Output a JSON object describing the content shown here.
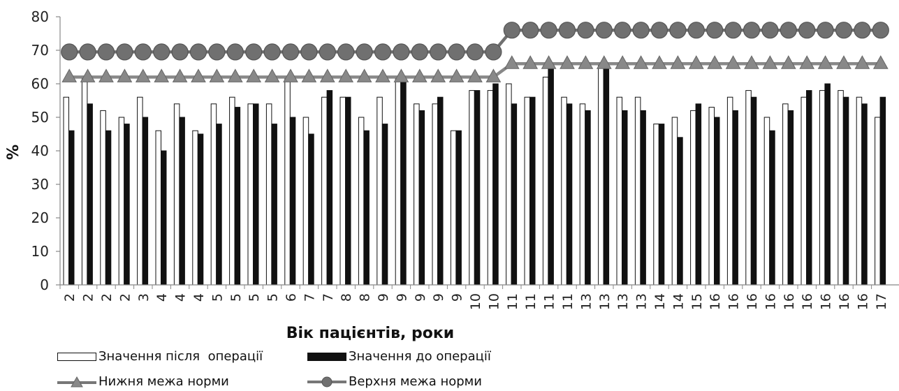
{
  "chart_data": {
    "type": "bar",
    "title": "",
    "xlabel": "Вік пацієнтів, роки",
    "ylabel": "%",
    "ylim": [
      0,
      80
    ],
    "yticks": [
      0,
      10,
      20,
      30,
      40,
      50,
      60,
      70,
      80
    ],
    "grid": false,
    "legend_position": "bottom",
    "categories": [
      "2",
      "2",
      "2",
      "2",
      "3",
      "4",
      "4",
      "4",
      "5",
      "5",
      "5",
      "5",
      "6",
      "7",
      "7",
      "8",
      "8",
      "9",
      "9",
      "9",
      "9",
      "9",
      "10",
      "10",
      "11",
      "11",
      "11",
      "11",
      "13",
      "13",
      "13",
      "13",
      "14",
      "14",
      "15",
      "16",
      "16",
      "16",
      "16",
      "16",
      "16",
      "16",
      "16",
      "16",
      "17"
    ],
    "series": [
      {
        "name": "Значення після  операції",
        "type": "bar",
        "color": "#ffffff",
        "values": [
          56,
          62,
          52,
          50,
          56,
          46,
          54,
          46,
          54,
          56,
          54,
          54,
          62,
          50,
          56,
          56,
          50,
          56,
          62,
          54,
          54,
          46,
          58,
          58,
          60,
          56,
          62,
          56,
          54,
          66,
          56,
          56,
          48,
          50,
          52,
          53,
          56,
          58,
          50,
          54,
          56,
          58,
          58,
          56,
          50
        ]
      },
      {
        "name": "Значення до операції",
        "type": "bar",
        "color": "#111111",
        "values": [
          46,
          54,
          46,
          48,
          50,
          40,
          50,
          45,
          48,
          53,
          54,
          48,
          50,
          45,
          58,
          56,
          46,
          48,
          62,
          52,
          56,
          46,
          58,
          60,
          54,
          56,
          66,
          54,
          52,
          66,
          52,
          52,
          48,
          44,
          54,
          50,
          52,
          56,
          46,
          52,
          58,
          60,
          56,
          54,
          56
        ]
      },
      {
        "name": "Нижня межа норми",
        "type": "line",
        "marker": "triangle",
        "color": "#888888",
        "values": [
          62,
          62,
          62,
          62,
          62,
          62,
          62,
          62,
          62,
          62,
          62,
          62,
          62,
          62,
          62,
          62,
          62,
          62,
          62,
          62,
          62,
          62,
          62,
          62,
          66,
          66,
          66,
          66,
          66,
          66,
          66,
          66,
          66,
          66,
          66,
          66,
          66,
          66,
          66,
          66,
          66,
          66,
          66,
          66,
          66
        ]
      },
      {
        "name": "Верхня межа норми",
        "type": "line",
        "marker": "circle",
        "color": "#707070",
        "values": [
          69.5,
          69.5,
          69.5,
          69.5,
          69.5,
          69.5,
          69.5,
          69.5,
          69.5,
          69.5,
          69.5,
          69.5,
          69.5,
          69.5,
          69.5,
          69.5,
          69.5,
          69.5,
          69.5,
          69.5,
          69.5,
          69.5,
          69.5,
          69.5,
          76,
          76,
          76,
          76,
          76,
          76,
          76,
          76,
          76,
          76,
          76,
          76,
          76,
          76,
          76,
          76,
          76,
          76,
          76,
          76,
          76
        ]
      }
    ]
  }
}
